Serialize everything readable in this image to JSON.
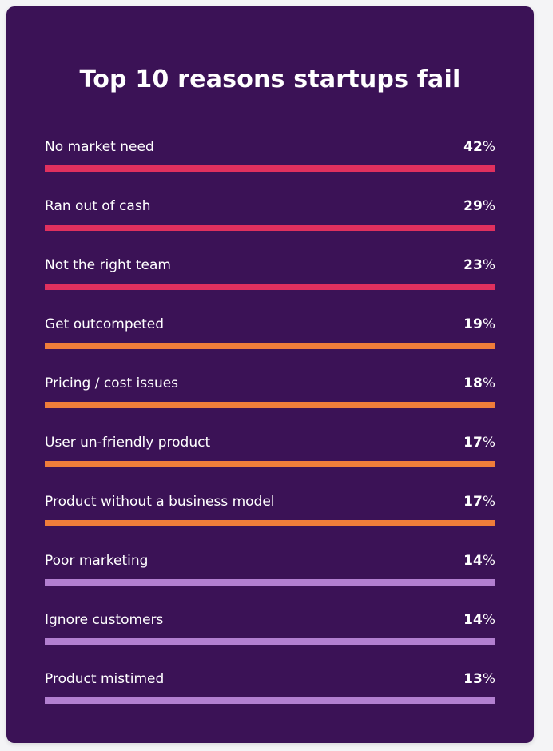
{
  "chart_data": {
    "type": "bar",
    "title": "Top 10 reasons startups fail",
    "categories": [
      "No market need",
      "Ran out of cash",
      "Not the right team",
      "Get outcompeted",
      "Pricing / cost issues",
      "User un-friendly product",
      "Product without a business model",
      "Poor marketing",
      "Ignore customers",
      "Product mistimed"
    ],
    "values": [
      42,
      29,
      23,
      19,
      18,
      17,
      17,
      14,
      14,
      13
    ],
    "unit": "%",
    "bar_colors": [
      "#e0305e",
      "#e0305e",
      "#e0305e",
      "#f07d3a",
      "#f07d3a",
      "#f07d3a",
      "#f07d3a",
      "#b27fd0",
      "#b27fd0",
      "#b27fd0"
    ]
  },
  "colors": {
    "card_background": "#3b1256",
    "text": "#ffffff"
  }
}
